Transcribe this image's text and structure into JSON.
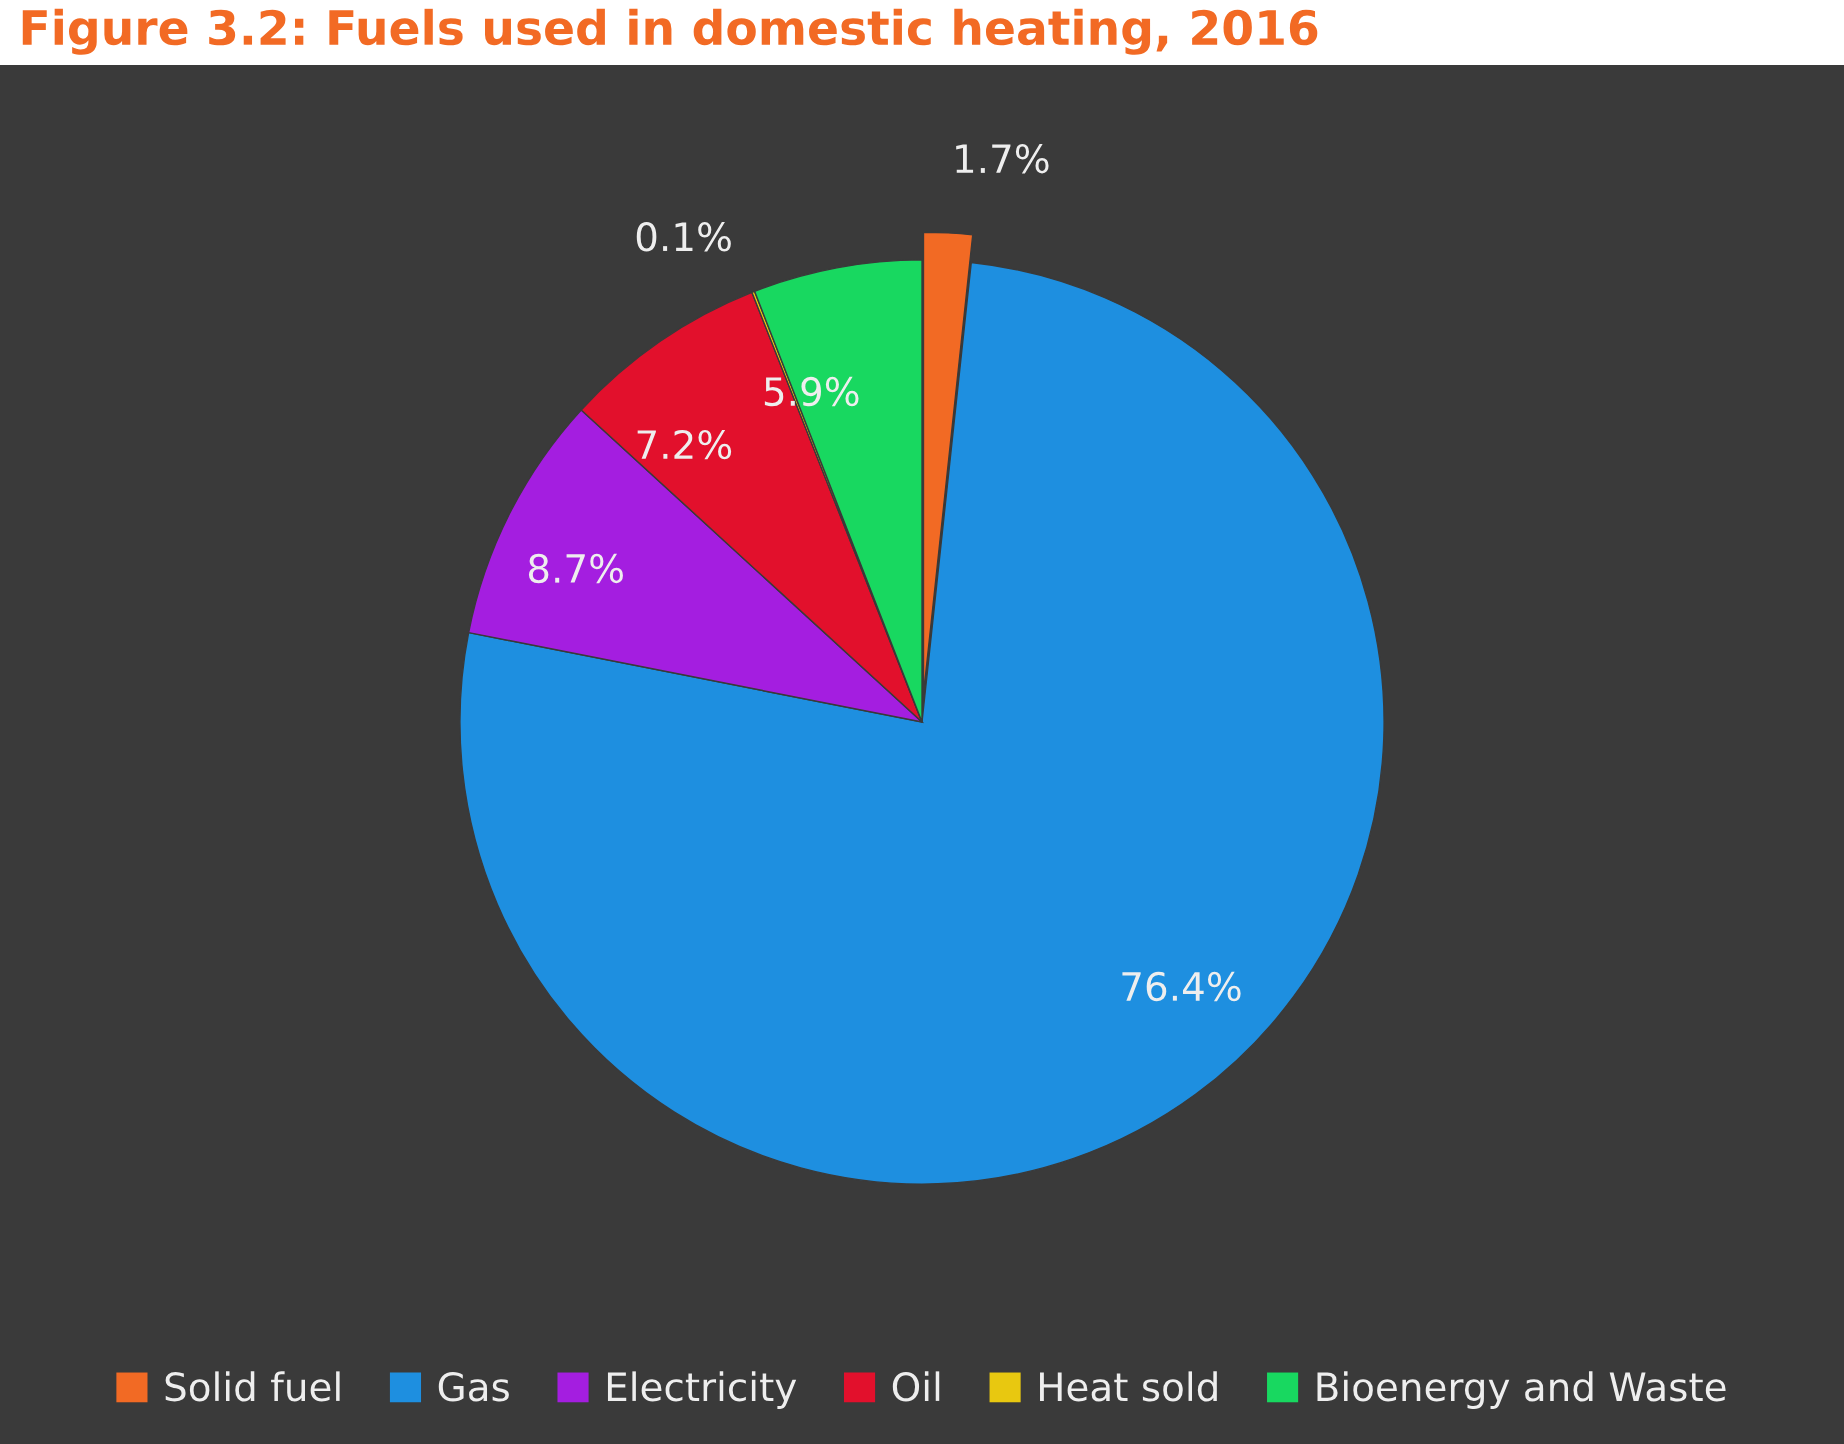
{
  "chart_data": {
    "type": "pie",
    "title": "Figure 3.2: Fuels used in domestic heating, 2016",
    "categories": [
      "Solid fuel",
      "Gas",
      "Electricity",
      "Oil",
      "Heat sold",
      "Bioenergy and Waste"
    ],
    "values": [
      1.7,
      76.4,
      8.7,
      7.2,
      0.1,
      5.9
    ],
    "colors": [
      "#f26a24",
      "#1e8fe0",
      "#a41ee0",
      "#e2102c",
      "#e8c810",
      "#18d860"
    ],
    "value_labels": [
      "1.7%",
      "76.4%",
      "8.7%",
      "7.2%",
      "0.1%",
      "5.9%"
    ],
    "legend": "bottom"
  }
}
